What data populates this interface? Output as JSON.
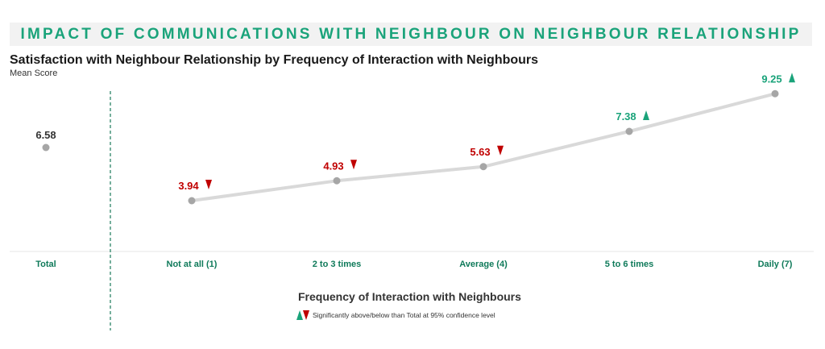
{
  "banner": {
    "title": "IMPACT OF COMMUNICATIONS WITH NEIGHBOUR ON NEIGHBOUR RELATIONSHIP"
  },
  "chart_data": {
    "type": "line",
    "title": "Satisfaction with Neighbour Relationship by Frequency of Interaction with Neighbours",
    "ylabel": "Mean Score",
    "xlabel": "Frequency of Interaction with Neighbours",
    "total": {
      "category": "Total",
      "value": 6.58,
      "label": "6.58"
    },
    "categories": [
      "Not at all (1)",
      "2 to 3 times",
      "Average (4)",
      "5 to 6 times",
      "Daily (7)"
    ],
    "values": [
      3.94,
      4.93,
      5.63,
      7.38,
      9.25
    ],
    "value_labels": [
      "3.94",
      "4.93",
      "5.63",
      "7.38",
      "9.25"
    ],
    "significance": [
      "below",
      "below",
      "below",
      "above",
      "above"
    ],
    "ylim": [
      2.5,
      9.5
    ],
    "grid": false,
    "colors": {
      "line": "#d9d9d9",
      "marker": "#a6a6a6",
      "above": "#1aa37a",
      "below": "#c00000",
      "neutral": "#333333",
      "axis_label": "#0f7a5a",
      "divider": "#1a7a5a"
    },
    "legend": {
      "text": "Significantly above/below than Total at 95% confidence level",
      "placement": "bottom"
    }
  }
}
